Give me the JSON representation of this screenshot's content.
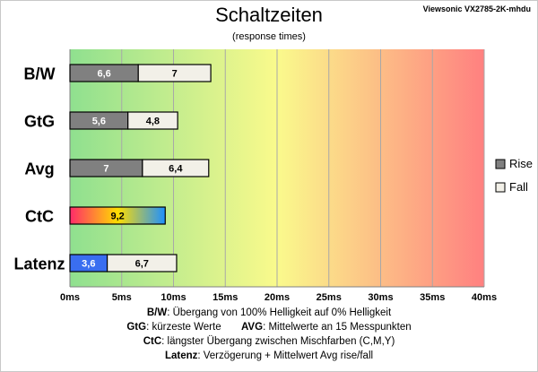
{
  "chart_data": {
    "type": "bar",
    "orientation": "horizontal",
    "stacked": true,
    "title": "Schaltzeiten",
    "subtitle": "(response times)",
    "model_label": "Viewsonic VX2785-2K-mhdu",
    "categories": [
      "B/W",
      "GtG",
      "Avg",
      "CtC",
      "Latenz"
    ],
    "series": [
      {
        "name": "Rise",
        "values": [
          6.6,
          5.6,
          7,
          null,
          null
        ],
        "labels": [
          "6,6",
          "5,6",
          "7",
          "",
          ""
        ],
        "color": "#808080"
      },
      {
        "name": "Fall",
        "values": [
          7,
          4.8,
          6.4,
          null,
          6.7
        ],
        "labels": [
          "7",
          "4,8",
          "6,4",
          "",
          "6,7"
        ],
        "color": "#f2f0e8"
      }
    ],
    "ctc": {
      "value": 9.2,
      "label": "9,2",
      "gradient": [
        "#ff2a6a",
        "#ffdd00",
        "#1e90ff"
      ]
    },
    "latenz_input": {
      "value": 3.6,
      "label": "3,6",
      "color": "#3a6ef0"
    },
    "xlim": [
      0,
      40
    ],
    "x_ticks": [
      0,
      5,
      10,
      15,
      20,
      25,
      30,
      35,
      40
    ],
    "x_tick_labels": [
      "0ms",
      "5ms",
      "10ms",
      "15ms",
      "20ms",
      "25ms",
      "30ms",
      "35ms",
      "40ms"
    ],
    "grid": true,
    "legend_position": "right",
    "background_gradient": [
      "#8fe08f",
      "#fafa8c",
      "#ff8080"
    ]
  },
  "footer": {
    "l1_key": "B/W",
    "l1_text": ":  Übergang von 100% Helligkeit auf 0% Helligkeit",
    "l2_key_a": "GtG",
    "l2_text_a": ": kürzeste  Werte",
    "l2_key_b": "AVG",
    "l2_text_b": ": Mittelwerte  an 15 Messpunkten",
    "l3_key": "CtC",
    "l3_text": ": längster Übergang  zwischen Mischfarben  (C,M,Y)",
    "l4_key": "Latenz",
    "l4_text": ": Verzögerung  + Mittelwert  Avg rise/fall"
  }
}
